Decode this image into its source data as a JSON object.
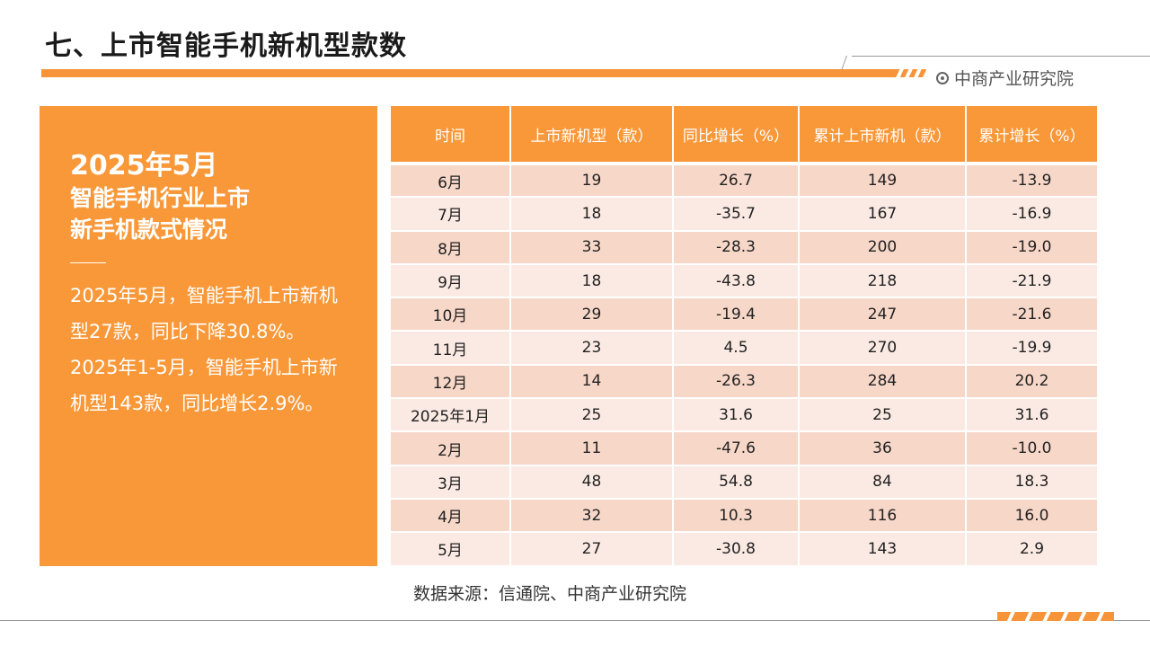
{
  "header": {
    "title": "七、上市智能手机新机型款数",
    "brand": "中商产业研究院"
  },
  "side_panel": {
    "heading": "2025年5月",
    "subheading_line1": "智能手机行业上市",
    "subheading_line2": "新手机款式情况",
    "paragraph1": "2025年5月，智能手机上市新机型27款，同比下降30.8%。",
    "paragraph2": "2025年1-5月，智能手机上市新机型143款，同比增长2.9%。"
  },
  "table": {
    "headers": [
      "时间",
      "上市新机型（款）",
      "同比增长（%）",
      "累计上市新机（款）",
      "累计增长（%）"
    ],
    "rows": [
      [
        "6月",
        "19",
        "26.7",
        "149",
        "-13.9"
      ],
      [
        "7月",
        "18",
        "-35.7",
        "167",
        "-16.9"
      ],
      [
        "8月",
        "33",
        "-28.3",
        "200",
        "-19.0"
      ],
      [
        "9月",
        "18",
        "-43.8",
        "218",
        "-21.9"
      ],
      [
        "10月",
        "29",
        "-19.4",
        "247",
        "-21.6"
      ],
      [
        "11月",
        "23",
        "4.5",
        "270",
        "-19.9"
      ],
      [
        "12月",
        "14",
        "-26.3",
        "284",
        "20.2"
      ],
      [
        "2025年1月",
        "25",
        "31.6",
        "25",
        "31.6"
      ],
      [
        "2月",
        "11",
        "-47.6",
        "36",
        "-10.0"
      ],
      [
        "3月",
        "48",
        "54.8",
        "84",
        "18.3"
      ],
      [
        "4月",
        "32",
        "10.3",
        "116",
        "16.0"
      ],
      [
        "5月",
        "27",
        "-30.8",
        "143",
        "2.9"
      ]
    ]
  },
  "source": "数据来源：信通院、中商产业研究院",
  "colors": {
    "accent": "#f99839",
    "row_dark": "#f7d7c8",
    "row_light": "#fbeae3"
  }
}
